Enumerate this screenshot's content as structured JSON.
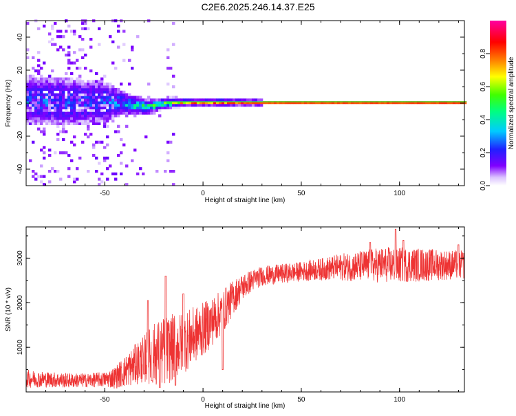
{
  "chart_data": [
    {
      "type": "heatmap",
      "title": "C2E6.2025.246.14.37.E25",
      "xlabel": "Height of straight line (km)",
      "ylabel": "Frequency (Hz)",
      "xlim": [
        -90,
        133
      ],
      "ylim": [
        -50,
        50
      ],
      "xticks": [
        -50,
        0,
        50,
        100
      ],
      "yticks": [
        -40,
        -20,
        0,
        20,
        40
      ],
      "colorbar": {
        "label": "Normalized spectral amplitude",
        "range": [
          0.0,
          1.0
        ],
        "ticks": [
          0.0,
          0.2,
          0.4,
          0.6,
          0.8
        ],
        "tick_labels": [
          "0.0",
          "0.2",
          "0.4",
          "0.6",
          "0.8"
        ],
        "colormap": "rainbow (white-violet-blue-cyan-green-yellow-orange-red-magenta)"
      },
      "ridge": {
        "description": "Dominant spectral line near 0 Hz; noisy and wide below ~-40 km, narrow and high amplitude above ~20 km",
        "x": [
          -90,
          -70,
          -50,
          -42,
          -35,
          -28,
          -20,
          -10,
          0,
          10,
          20,
          50,
          100,
          133
        ],
        "center_hz": [
          1.5,
          1.0,
          0.5,
          0.5,
          -1.5,
          -2.0,
          0.0,
          0.5,
          0.5,
          0.5,
          0.5,
          0.5,
          0.5,
          0.5
        ],
        "halfwidth_hz": [
          6,
          6,
          5,
          3,
          2.5,
          2,
          1.5,
          1.2,
          1.0,
          1.2,
          0.9,
          0.9,
          0.9,
          0.9
        ],
        "amplitude": [
          0.22,
          0.2,
          0.18,
          0.3,
          0.45,
          0.5,
          0.6,
          0.72,
          0.8,
          0.82,
          0.85,
          0.86,
          0.87,
          0.87
        ]
      }
    },
    {
      "type": "line",
      "color": "#ee3333",
      "xlabel": "Height of straight line (km)",
      "ylabel": "SNR (10 * v/v)",
      "xlim": [
        -90,
        133
      ],
      "ylim": [
        0,
        3700
      ],
      "xticks": [
        -50,
        0,
        50,
        100
      ],
      "yticks": [
        1000,
        2000,
        3000
      ],
      "series": [
        {
          "name": "SNR",
          "trend_x": [
            -90,
            -80,
            -70,
            -60,
            -50,
            -45,
            -40,
            -35,
            -30,
            -25,
            -20,
            -15,
            -10,
            -5,
            0,
            5,
            10,
            15,
            20,
            25,
            30,
            40,
            50,
            60,
            70,
            80,
            90,
            100,
            110,
            120,
            133
          ],
          "trend_y": [
            300,
            280,
            260,
            260,
            280,
            320,
            450,
            600,
            750,
            850,
            900,
            1000,
            1100,
            1250,
            1400,
            1600,
            1800,
            2100,
            2350,
            2500,
            2600,
            2650,
            2700,
            2750,
            2800,
            2820,
            2850,
            2850,
            2850,
            2850,
            2850
          ],
          "noise_amp": [
            200,
            180,
            170,
            160,
            170,
            250,
            350,
            450,
            550,
            700,
            800,
            750,
            700,
            650,
            600,
            550,
            500,
            400,
            300,
            250,
            220,
            220,
            220,
            250,
            300,
            350,
            400,
            400,
            380,
            350,
            320
          ],
          "peaks": [
            [
              -19,
              2600
            ],
            [
              -28,
              2050
            ],
            [
              -10,
              2200
            ],
            [
              98,
              3650
            ],
            [
              85,
              3350
            ],
            [
              102,
              3400
            ],
            [
              130,
              3300
            ]
          ],
          "dips": [
            [
              -22,
              100
            ],
            [
              -14,
              150
            ],
            [
              10,
              500
            ],
            [
              -30,
              400
            ],
            [
              -26,
              250
            ]
          ]
        }
      ]
    }
  ]
}
